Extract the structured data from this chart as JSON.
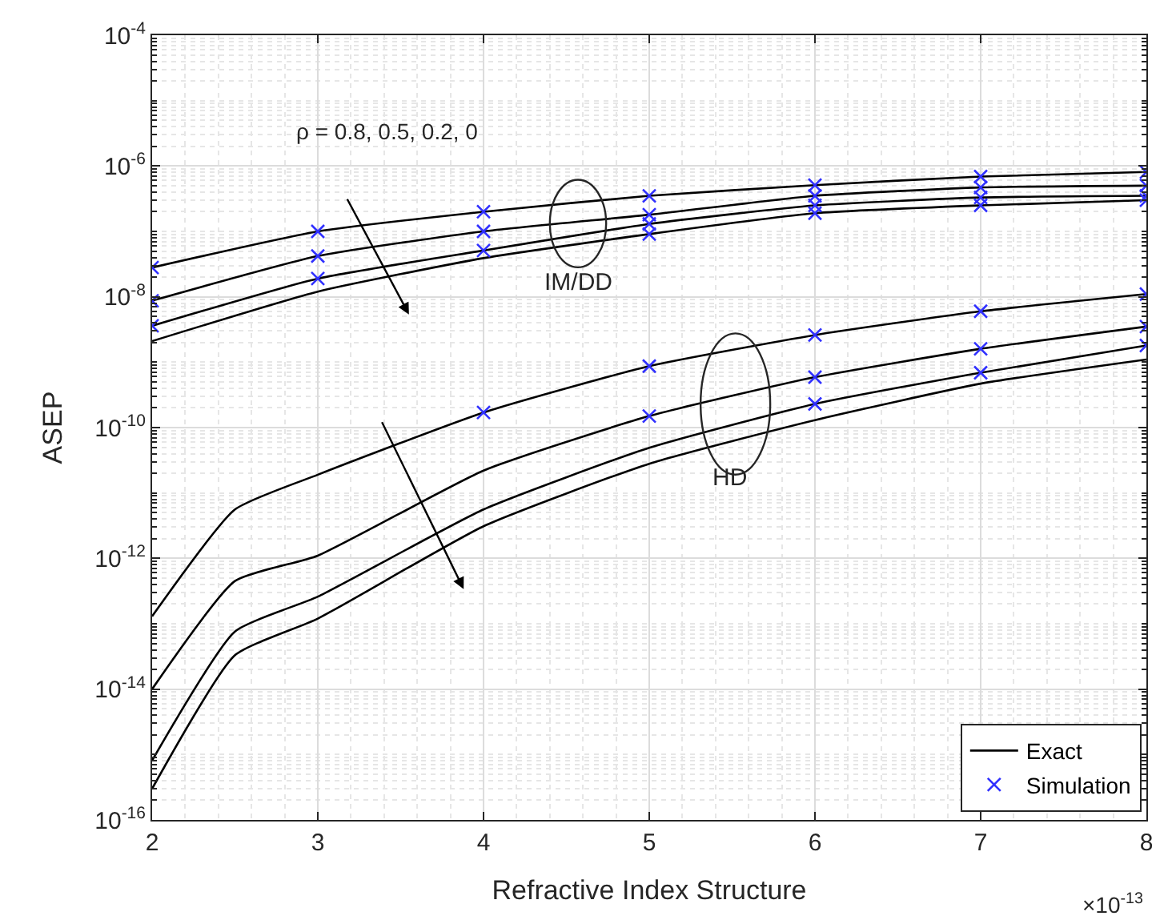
{
  "chart_data": {
    "type": "line",
    "xlabel": "Refractive Index Structure",
    "ylabel": "ASEP",
    "xlim": [
      2,
      8
    ],
    "xticks": [
      2,
      3,
      4,
      5,
      6,
      7,
      8
    ],
    "ylim": [
      1e-16,
      0.0001
    ],
    "yticks": [
      {
        "value": 0.0001,
        "label": "10$^{-4}$"
      },
      {
        "value": 1e-06,
        "label": "10$^{-6}$"
      },
      {
        "value": 1e-08,
        "label": "10$^{-8}$"
      },
      {
        "value": 1e-10,
        "label": "10$^{-10}$"
      },
      {
        "value": 1e-12,
        "label": "10$^{-12}$"
      },
      {
        "value": 1e-14,
        "label": "10$^{-14}$"
      },
      {
        "value": 1e-16,
        "label": "10$^{-16}$"
      }
    ],
    "log": "y",
    "grid": true,
    "legend": "bottom right",
    "line_style": "solid",
    "series": [
      {
        "name": "Exact",
        "color": "#000000",
        "x": [
          2,
          3,
          4,
          5,
          6,
          7,
          8
        ],
        "values": [
          2.8e-08,
          1e-07,
          2e-07,
          3.5e-07,
          5.1e-07,
          6.9e-07,
          8.1e-07
        ]
      },
      {
        "color": "#000000",
        "x": [
          2,
          3,
          4,
          5,
          6,
          7,
          8
        ],
        "values": [
          8.7e-09,
          4.2e-08,
          1e-07,
          1.8e-07,
          3.5e-07,
          4.7e-07,
          5e-07
        ]
      },
      {
        "color": "#000000",
        "x": [
          2,
          3,
          4,
          5,
          6,
          7,
          8
        ],
        "values": [
          3.6e-09,
          1.9e-08,
          5.1e-08,
          1.3e-07,
          2.5e-07,
          3.3e-07,
          3.5e-07
        ]
      },
      {
        "color": "#000000",
        "x": [
          2,
          3,
          4,
          5,
          6,
          7,
          8
        ],
        "values": [
          2.1e-09,
          1.2e-08,
          3.9e-08,
          9.1e-08,
          1.9e-07,
          2.5e-07,
          3e-07
        ]
      },
      {
        "color": "#000000",
        "x": [
          2,
          2.5,
          3,
          4,
          5,
          6,
          7,
          8
        ],
        "values": [
          1.3e-13,
          5.6e-12,
          1.9e-11,
          1.7e-10,
          8.7e-10,
          2.6e-09,
          6e-09,
          1.1e-08
        ]
      },
      {
        "color": "#000000",
        "x": [
          2,
          2.5,
          3,
          4,
          5,
          6,
          7,
          8
        ],
        "values": [
          1e-14,
          4.5e-13,
          1.1e-12,
          2.2e-11,
          1.5e-10,
          5.9e-10,
          1.6e-09,
          3.5e-09
        ]
      },
      {
        "color": "#000000",
        "x": [
          2,
          2.5,
          3,
          4,
          5,
          6,
          7,
          8
        ],
        "values": [
          8.1e-16,
          7.6e-14,
          2.6e-13,
          5.6e-12,
          4.9e-11,
          2.3e-10,
          6.9e-10,
          1.8e-09
        ]
      },
      {
        "color": "#000000",
        "x": [
          2,
          2.5,
          3,
          4,
          5,
          6,
          7,
          8
        ],
        "values": [
          3e-16,
          3.3e-14,
          1.2e-13,
          3.1e-12,
          2.8e-11,
          1.3e-10,
          4.7e-10,
          1.1e-09
        ]
      },
      {
        "name": "Simulation",
        "type": "scatter",
        "marker": "cross",
        "color": "#3030ff",
        "x": [
          2,
          2,
          2,
          3,
          3,
          3,
          4,
          4,
          4,
          5,
          5,
          5,
          5,
          6,
          6,
          6,
          6,
          7,
          7,
          7,
          7,
          8,
          8,
          8,
          8,
          4,
          5,
          5,
          6,
          6,
          6,
          7,
          7,
          7,
          8,
          8,
          8
        ],
        "values": [
          2.8e-08,
          8.7e-09,
          3.6e-09,
          1e-07,
          4.2e-08,
          1.9e-08,
          2e-07,
          1e-07,
          5.1e-08,
          3.5e-07,
          1.8e-07,
          1.3e-07,
          9.1e-08,
          5.1e-07,
          3.5e-07,
          2.5e-07,
          1.9e-07,
          6.9e-07,
          4.7e-07,
          3.3e-07,
          2.5e-07,
          8.1e-07,
          5e-07,
          3.5e-07,
          3e-07,
          1.7e-10,
          8.7e-10,
          1.5e-10,
          2.6e-09,
          5.9e-10,
          2.3e-10,
          6e-09,
          1.6e-09,
          6.9e-10,
          1.1e-08,
          3.5e-09,
          1.8e-09
        ]
      }
    ],
    "annotations": [
      "ρ = 0.8, 0.5, 0.2, 0",
      "IM/DD",
      "HD",
      "×10$^{-13}$"
    ]
  }
}
